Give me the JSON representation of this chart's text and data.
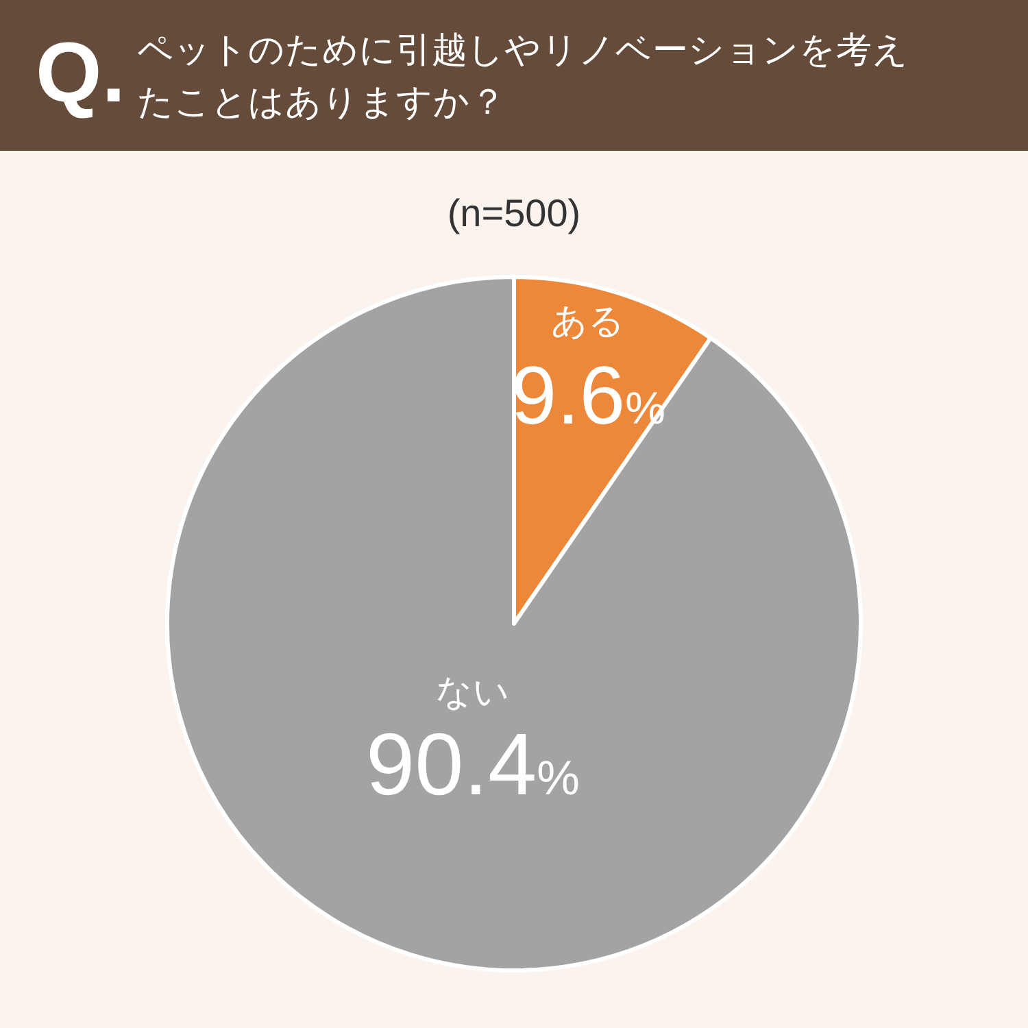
{
  "chart_data": {
    "type": "pie",
    "title": "ペットのために引越しやリノベーションを考えたことはありますか？",
    "subtitle": "(n=500)",
    "annotations": [
      "Q."
    ],
    "categories": [
      "ある",
      "ない"
    ],
    "values": [
      9.6,
      90.4
    ],
    "colors": [
      "#ed8739",
      "#a3a3a3"
    ],
    "value_labels": [
      "9.6%",
      "90.4%"
    ]
  }
}
